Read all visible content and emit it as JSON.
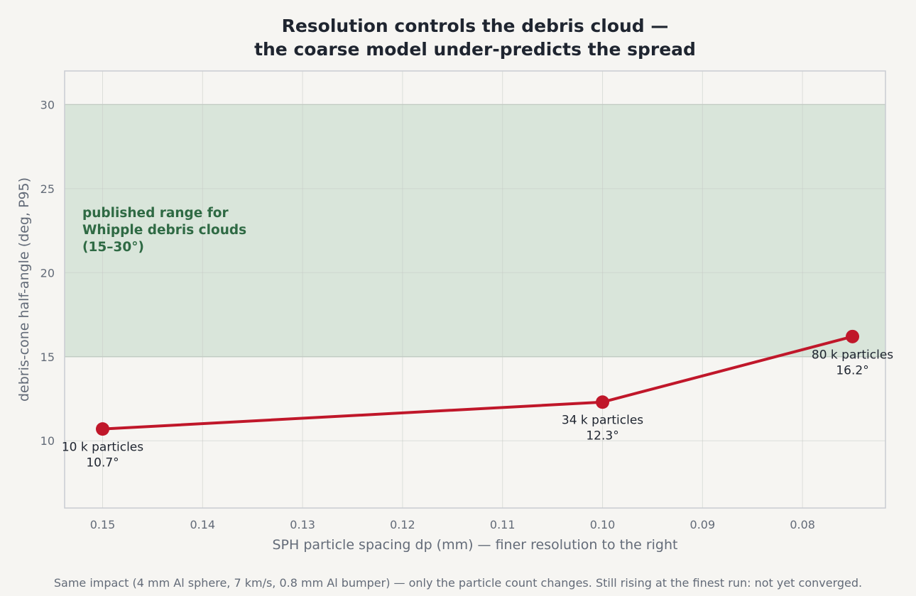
{
  "chart_data": {
    "type": "line",
    "title": [
      "Resolution controls the debris cloud —",
      "the coarse model under-predicts the spread"
    ],
    "xlabel": "SPH particle spacing  dp  (mm)   —  finer resolution to the right",
    "ylabel": "debris-cone half-angle  (deg, P95)",
    "footnote": "Same impact (4 mm Al sphere, 7 km/s, 0.8 mm Al bumper) — only the particle count changes. Still rising at the finest run: not yet converged.",
    "x_axis_reversed": true,
    "xlim": [
      0.1538,
      0.0717
    ],
    "ylim": [
      6,
      32
    ],
    "x_ticks": [
      0.15,
      0.14,
      0.13,
      0.12,
      0.11,
      0.1,
      0.09,
      0.08
    ],
    "x_tick_labels": [
      "0.15",
      "0.14",
      "0.13",
      "0.12",
      "0.11",
      "0.10",
      "0.09",
      "0.08"
    ],
    "y_ticks": [
      10,
      15,
      20,
      25,
      30
    ],
    "y_tick_labels": [
      "10",
      "15",
      "20",
      "25",
      "30"
    ],
    "grid": true,
    "band": {
      "y_from": 15,
      "y_to": 30,
      "color": "#d9e5da",
      "label": [
        "published range for",
        "Whipple debris clouds",
        "(15–30°)"
      ]
    },
    "series": [
      {
        "color": "#c0172a",
        "points": [
          {
            "x": 0.15,
            "y": 10.7,
            "label": [
              "10 k particles",
              "10.7°"
            ]
          },
          {
            "x": 0.1,
            "y": 12.3,
            "label": [
              "34 k particles",
              "12.3°"
            ]
          },
          {
            "x": 0.075,
            "y": 16.2,
            "label": [
              "80 k particles",
              "16.2°"
            ]
          }
        ]
      }
    ]
  }
}
